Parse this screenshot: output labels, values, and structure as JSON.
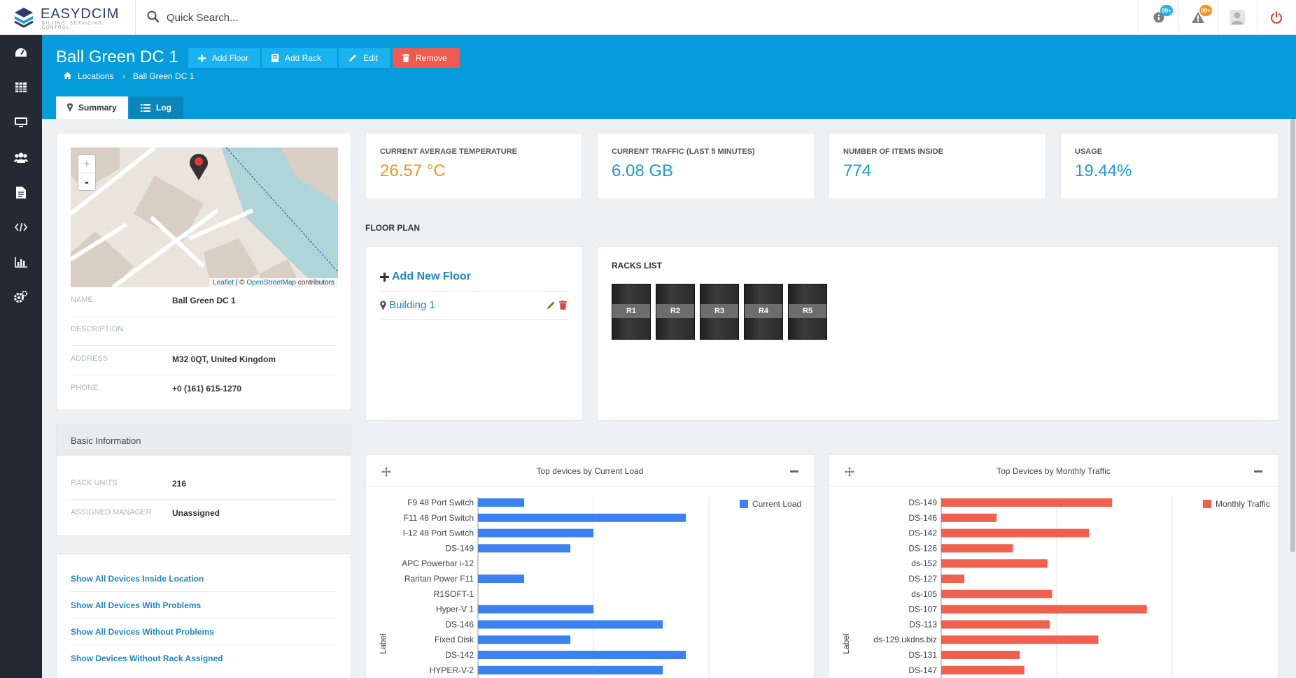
{
  "app": {
    "brand": "EASYDCIM",
    "brand_sub": "BILLING. SERVICING. CONTROL."
  },
  "search": {
    "placeholder": "Quick Search..."
  },
  "topbar": {
    "info_badge": "99+",
    "alert_badge": "99+"
  },
  "sidebar": {
    "items": [
      "dashboard-icon",
      "grid-icon",
      "monitor-icon",
      "users-icon",
      "document-icon",
      "code-icon",
      "bar-chart-icon",
      "settings-icon"
    ]
  },
  "header": {
    "title": "Ball Green DC 1",
    "buttons": {
      "add_floor": "Add Floor",
      "add_rack": "Add Rack",
      "edit": "Edit",
      "remove": "Remove"
    },
    "breadcrumb": {
      "root": "Locations",
      "current": "Ball Green DC 1"
    },
    "tabs": {
      "summary": "Summary",
      "log": "Log"
    }
  },
  "map": {
    "zoom_in": "+",
    "zoom_out": "-",
    "attribution_link1": "Leaflet",
    "attribution_mid": " | © ",
    "attribution_link2": "OpenStreetMap",
    "attribution_tail": " contributors"
  },
  "location": {
    "rows": [
      {
        "key": "NAME",
        "value": "Ball Green DC 1"
      },
      {
        "key": "DESCRIPTION",
        "value": ""
      },
      {
        "key": "ADDRESS",
        "value": "M32 0QT, United Kingdom"
      },
      {
        "key": "PHONE",
        "value": "+0 (161) 615-1270"
      }
    ]
  },
  "basic_info": {
    "title": "Basic Information",
    "rows": [
      {
        "key": "RACK UNITS",
        "value": "216"
      },
      {
        "key": "ASSIGNED MANAGER",
        "value": "Unassigned"
      }
    ]
  },
  "links": [
    "Show All Devices Inside Location",
    "Show All Devices With Problems",
    "Show All Devices Without Problems",
    "Show Devices Without Rack Assigned"
  ],
  "stats": [
    {
      "label": "CURRENT AVERAGE TEMPERATURE",
      "value": "26.57 °C",
      "color": "#f7941d"
    },
    {
      "label": "CURRENT TRAFFIC (LAST 5 MINUTES)",
      "value": "6.08 GB",
      "color": "#1a9ad6"
    },
    {
      "label": "NUMBER OF ITEMS INSIDE",
      "value": "774",
      "color": "#1a9ad6"
    },
    {
      "label": "USAGE",
      "value": "19.44%",
      "color": "#1a9ad6"
    }
  ],
  "floor_plan": {
    "heading": "FLOOR PLAN",
    "add_new": "Add New Floor",
    "floors": [
      "Building 1"
    ]
  },
  "racks": {
    "heading": "RACKS LIST",
    "items": [
      "R1",
      "R2",
      "R3",
      "R4",
      "R5"
    ]
  },
  "chart_data": [
    {
      "type": "bar",
      "title": "Top devices by Current Load",
      "ylabel": "Label",
      "legend": "Current Load",
      "legend_position": "top-right",
      "color": "#3b82f0",
      "categories": [
        "F9 48 Port Switch",
        "F11 48 Port Switch",
        "I-12 48 Port Switch",
        "DS-149",
        "APC Powerbar i-12",
        "Raritan Power F11",
        "R1SOFT-1",
        "Hyper-V 1",
        "DS-146",
        "Fixed Disk",
        "DS-142",
        "HYPER-V-2"
      ],
      "values": [
        2,
        9,
        5,
        4,
        0,
        2,
        0,
        5,
        8,
        4,
        9,
        8
      ],
      "xlim": [
        0,
        10
      ],
      "grid": true
    },
    {
      "type": "bar",
      "title": "Top Devices by Monthly Traffic",
      "ylabel": "Label",
      "legend": "Monthly Traffic",
      "legend_position": "top-right",
      "color": "#f0604f",
      "categories": [
        "DS-149",
        "DS-146",
        "DS-142",
        "DS-126",
        "ds-152",
        "DS-127",
        "ds-105",
        "DS-107",
        "DS-113",
        "ds-129.ukdns.biz",
        "DS-131",
        "DS-147"
      ],
      "values": [
        7.4,
        2.4,
        6.4,
        3.1,
        4.6,
        1,
        4.8,
        8.9,
        4.7,
        6.8,
        3.4,
        3.6
      ],
      "xlim": [
        0,
        10
      ],
      "grid": true
    }
  ]
}
